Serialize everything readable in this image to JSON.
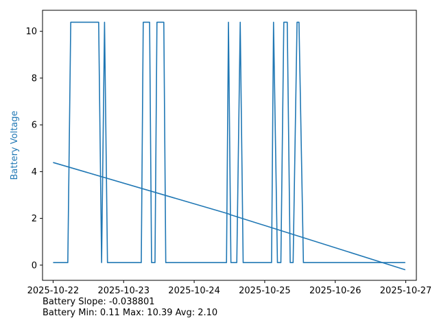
{
  "chart_data": {
    "type": "line",
    "title": "",
    "xlabel": "",
    "ylabel": "Battery Voltage",
    "ylabel_color": "#1f77b4",
    "line_color": "#1f77b4",
    "x_range_days": [
      "2025-10-21T20:24",
      "2025-10-27T03:36"
    ],
    "ylim": [
      -0.65,
      10.9
    ],
    "x_ticks": [
      "2025-10-22",
      "2025-10-23",
      "2025-10-24",
      "2025-10-25",
      "2025-10-26",
      "2025-10-27"
    ],
    "y_ticks": [
      0,
      2,
      4,
      6,
      8,
      10
    ],
    "grid": false,
    "legend": "none",
    "series": [
      {
        "name": "",
        "x": [
          "2025-10-22 00:00",
          "2025-10-22 05:00",
          "2025-10-22 06:00",
          "2025-10-22 15:30",
          "2025-10-22 16:30",
          "2025-10-22 17:30",
          "2025-10-22 18:30",
          "2025-10-23 06:00",
          "2025-10-23 06:40",
          "2025-10-23 08:50",
          "2025-10-23 09:30",
          "2025-10-23 10:40",
          "2025-10-23 11:20",
          "2025-10-23 13:40",
          "2025-10-23 14:20",
          "2025-10-24 11:00",
          "2025-10-24 11:40",
          "2025-10-24 12:30",
          "2025-10-24 14:30",
          "2025-10-24 15:40",
          "2025-10-24 16:40",
          "2025-10-25 02:20",
          "2025-10-25 03:00",
          "2025-10-25 04:20",
          "2025-10-25 05:30",
          "2025-10-25 06:30",
          "2025-10-25 07:40",
          "2025-10-25 08:40",
          "2025-10-25 09:40",
          "2025-10-25 11:00",
          "2025-10-25 11:40",
          "2025-10-25 13:10",
          "2025-10-26 23:50"
        ],
        "y": [
          0.11,
          0.11,
          10.39,
          10.39,
          0.11,
          10.39,
          0.11,
          0.11,
          10.39,
          10.39,
          0.11,
          0.11,
          10.39,
          10.39,
          0.11,
          0.11,
          10.39,
          0.11,
          0.11,
          10.39,
          0.11,
          0.11,
          10.39,
          0.11,
          0.11,
          10.39,
          10.39,
          0.11,
          0.11,
          10.39,
          10.39,
          0.11,
          0.11
        ]
      },
      {
        "name": "",
        "x": [
          "2025-10-22 00:00",
          "2025-10-24 11:30",
          "2025-10-24 12:30",
          "2025-10-26 23:50"
        ],
        "y": [
          4.39,
          2.2,
          2.15,
          -0.2
        ]
      }
    ]
  },
  "stats": {
    "slope_line": "Battery Slope: -0.038801",
    "minmax_line": "Battery Min: 0.11 Max: 10.39 Avg: 2.10"
  }
}
